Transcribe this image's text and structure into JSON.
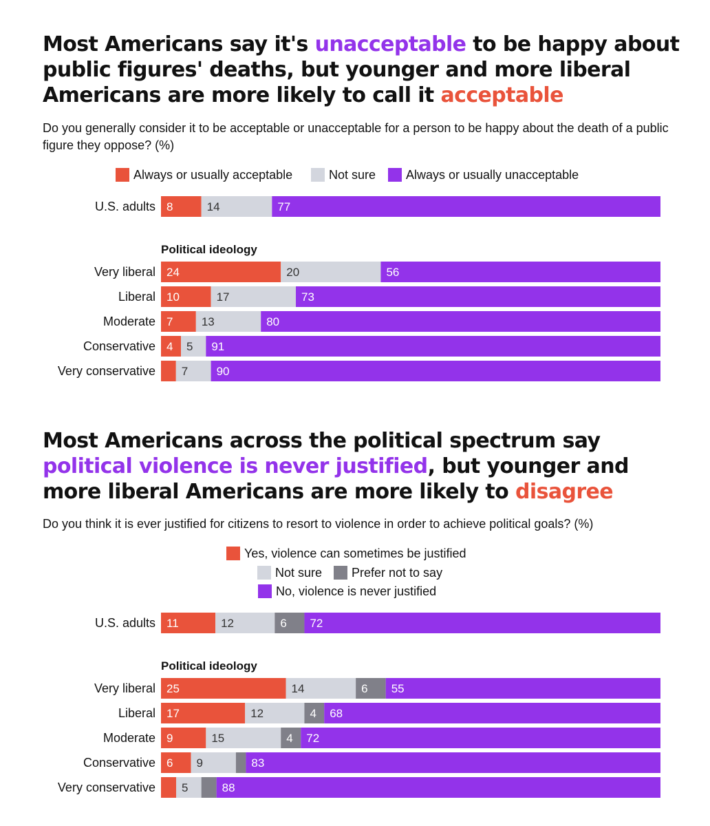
{
  "colors": {
    "acceptable": "#e9533b",
    "not_sure": "#d3d6de",
    "prefer_not": "#808089",
    "unacceptable": "#9333ea",
    "text": "#111111"
  },
  "charts": [
    {
      "title_parts": [
        {
          "text": "Most Americans say it's ",
          "style": "normal"
        },
        {
          "text": "unacceptable",
          "style": "purple"
        },
        {
          "text": " to be happy about public figures' deaths, but younger and more liberal Americans are more likely to call it ",
          "style": "normal"
        },
        {
          "text": "acceptable",
          "style": "red"
        }
      ],
      "subtitle": "Do you generally consider it to be acceptable or unacceptable for a person to be happy about the death of a public figure they oppose? (%)",
      "legend": [
        {
          "label": "Always or usually acceptable",
          "color": "#e9533b"
        },
        {
          "label": "Not sure",
          "color": "#d3d6de"
        },
        {
          "label": "Always or usually unacceptable",
          "color": "#9333ea"
        }
      ]
    },
    {
      "title_parts": [
        {
          "text": "Most Americans across the political spectrum say ",
          "style": "normal"
        },
        {
          "text": "political violence is never justified",
          "style": "purple"
        },
        {
          "text": ", but younger and more liberal Americans are more likely to ",
          "style": "normal"
        },
        {
          "text": "disagree",
          "style": "red"
        }
      ],
      "subtitle": "Do you think it is ever justified for citizens to resort to violence in order to achieve political goals? (%)",
      "legend": [
        {
          "label": "Yes, violence can sometimes be justified",
          "color": "#e9533b"
        },
        {
          "label": "Not sure",
          "color": "#d3d6de"
        },
        {
          "label": "Prefer not to say",
          "color": "#808089"
        },
        {
          "label": "No, violence is never justified",
          "color": "#9333ea"
        }
      ]
    }
  ],
  "chart_data": [
    {
      "type": "bar",
      "stacked": true,
      "orientation": "horizontal",
      "xlim": [
        0,
        100
      ],
      "series": [
        {
          "name": "Always or usually acceptable",
          "color": "#e9533b"
        },
        {
          "name": "Not sure",
          "color": "#d3d6de"
        },
        {
          "name": "Always or usually unacceptable",
          "color": "#9333ea"
        }
      ],
      "groups": [
        {
          "label": "",
          "rows": [
            {
              "label": "U.S. adults",
              "values": [
                8,
                14,
                77
              ],
              "labels": [
                "8",
                "14",
                "77"
              ]
            }
          ]
        },
        {
          "label": "Political ideology",
          "rows": [
            {
              "label": "Very liberal",
              "values": [
                24,
                20,
                56
              ],
              "labels": [
                "24",
                "20",
                "56"
              ]
            },
            {
              "label": "Liberal",
              "values": [
                10,
                17,
                73
              ],
              "labels": [
                "10",
                "17",
                "73"
              ]
            },
            {
              "label": "Moderate",
              "values": [
                7,
                13,
                80
              ],
              "labels": [
                "7",
                "13",
                "80"
              ]
            },
            {
              "label": "Conservative",
              "values": [
                4,
                5,
                91
              ],
              "labels": [
                "4",
                "5",
                "91"
              ]
            },
            {
              "label": "Very conservative",
              "values": [
                3,
                7,
                90
              ],
              "labels": [
                "",
                "7",
                "90"
              ]
            }
          ]
        }
      ]
    },
    {
      "type": "bar",
      "stacked": true,
      "orientation": "horizontal",
      "xlim": [
        0,
        100
      ],
      "series": [
        {
          "name": "Yes, violence can sometimes be justified",
          "color": "#e9533b"
        },
        {
          "name": "Not sure",
          "color": "#d3d6de"
        },
        {
          "name": "Prefer not to say",
          "color": "#808089"
        },
        {
          "name": "No, violence is never justified",
          "color": "#9333ea"
        }
      ],
      "groups": [
        {
          "label": "",
          "rows": [
            {
              "label": "U.S. adults",
              "values": [
                11,
                12,
                6,
                72
              ],
              "labels": [
                "11",
                "12",
                "6",
                "72"
              ]
            }
          ]
        },
        {
          "label": "Political ideology",
          "rows": [
            {
              "label": "Very liberal",
              "values": [
                25,
                14,
                6,
                55
              ],
              "labels": [
                "25",
                "14",
                "6",
                "55"
              ]
            },
            {
              "label": "Liberal",
              "values": [
                17,
                12,
                4,
                68
              ],
              "labels": [
                "17",
                "12",
                "4",
                "68"
              ]
            },
            {
              "label": "Moderate",
              "values": [
                9,
                15,
                4,
                72
              ],
              "labels": [
                "9",
                "15",
                "4",
                "72"
              ]
            },
            {
              "label": "Conservative",
              "values": [
                6,
                9,
                2,
                83
              ],
              "labels": [
                "6",
                "9",
                "",
                "83"
              ]
            },
            {
              "label": "Very conservative",
              "values": [
                3,
                5,
                3,
                88
              ],
              "labels": [
                "",
                "5",
                "",
                "88"
              ]
            }
          ]
        }
      ]
    }
  ]
}
